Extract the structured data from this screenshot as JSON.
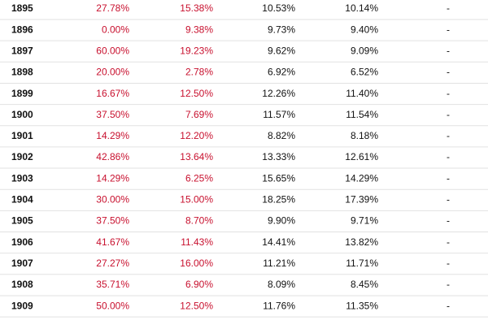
{
  "table": {
    "rows": [
      [
        "1895",
        "27.78%",
        "15.38%",
        "10.53%",
        "10.14%",
        "-"
      ],
      [
        "1896",
        "0.00%",
        "9.38%",
        "9.73%",
        "9.40%",
        "-"
      ],
      [
        "1897",
        "60.00%",
        "19.23%",
        "9.62%",
        "9.09%",
        "-"
      ],
      [
        "1898",
        "20.00%",
        "2.78%",
        "6.92%",
        "6.52%",
        "-"
      ],
      [
        "1899",
        "16.67%",
        "12.50%",
        "12.26%",
        "11.40%",
        "-"
      ],
      [
        "1900",
        "37.50%",
        "7.69%",
        "11.57%",
        "11.54%",
        "-"
      ],
      [
        "1901",
        "14.29%",
        "12.20%",
        "8.82%",
        "8.18%",
        "-"
      ],
      [
        "1902",
        "42.86%",
        "13.64%",
        "13.33%",
        "12.61%",
        "-"
      ],
      [
        "1903",
        "14.29%",
        "6.25%",
        "15.65%",
        "14.29%",
        "-"
      ],
      [
        "1904",
        "30.00%",
        "15.00%",
        "18.25%",
        "17.39%",
        "-"
      ],
      [
        "1905",
        "37.50%",
        "8.70%",
        "9.90%",
        "9.71%",
        "-"
      ],
      [
        "1906",
        "41.67%",
        "11.43%",
        "14.41%",
        "13.82%",
        "-"
      ],
      [
        "1907",
        "27.27%",
        "16.00%",
        "11.21%",
        "11.71%",
        "-"
      ],
      [
        "1908",
        "35.71%",
        "6.90%",
        "8.09%",
        "8.45%",
        "-"
      ],
      [
        "1909",
        "50.00%",
        "12.50%",
        "11.76%",
        "11.35%",
        "-"
      ]
    ]
  }
}
